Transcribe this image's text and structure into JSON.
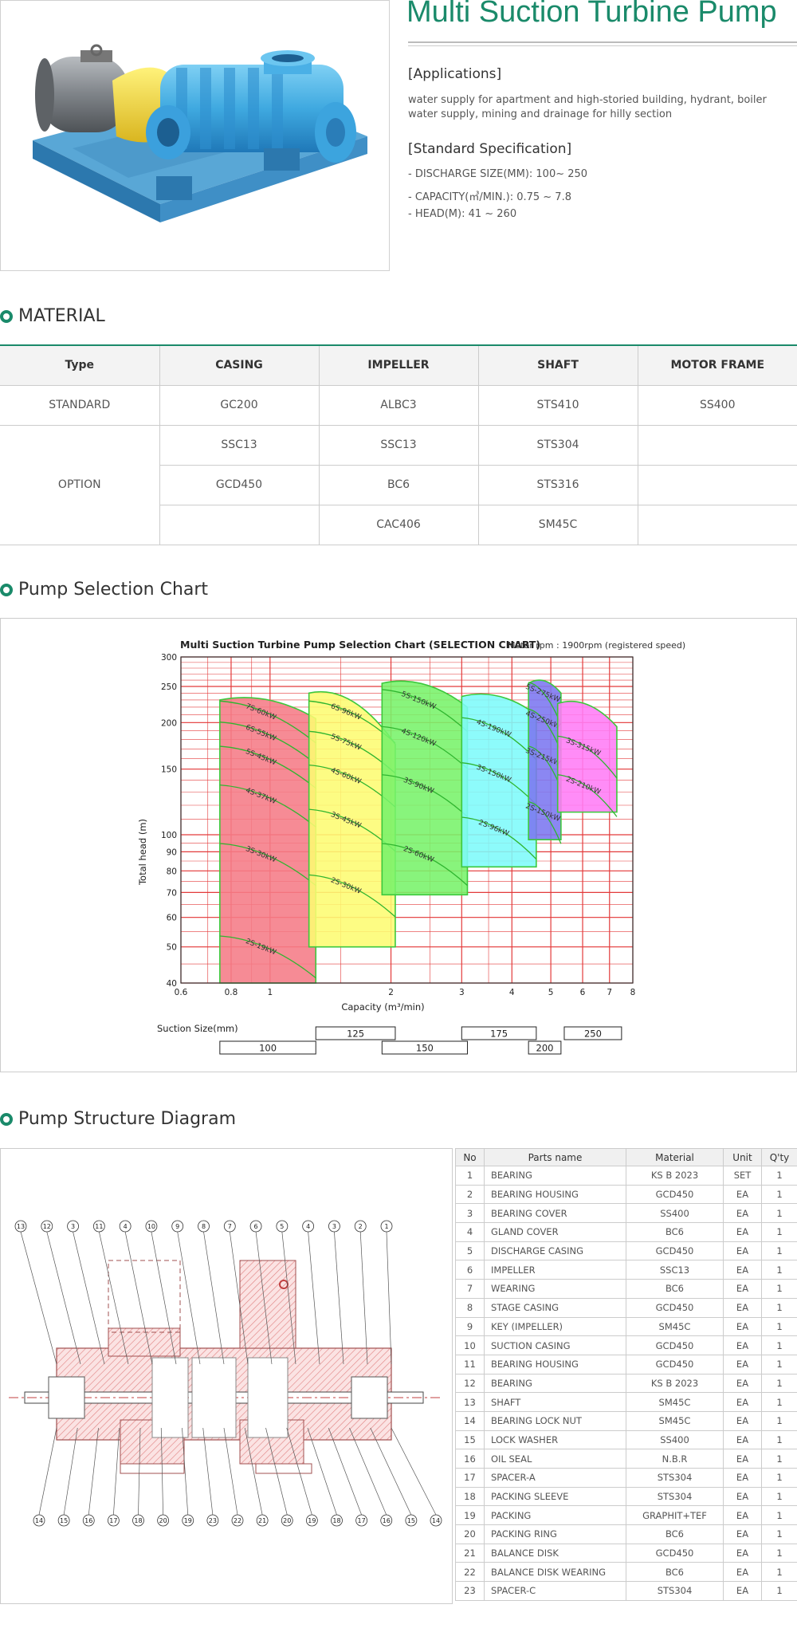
{
  "header": {
    "title": "Multi Suction Turbine Pump",
    "applications_heading": "[Applications]",
    "applications_text": "water supply for apartment and high-storied building, hydrant, boiler water supply, mining and drainage for hilly section",
    "spec_heading": "[Standard Specification]",
    "specs": [
      "- DISCHARGE SIZE(MM): 100~ 250",
      "- CAPACITY(㎥/MIN.): 0.75 ~ 7.8",
      "- HEAD(M): 41 ~ 260"
    ]
  },
  "material": {
    "heading": "MATERIAL",
    "columns": [
      "Type",
      "CASING",
      "IMPELLER",
      "SHAFT",
      "MOTOR FRAME"
    ],
    "standard": {
      "type": "STANDARD",
      "values": [
        "GC200",
        "ALBC3",
        "STS410",
        "SS400"
      ]
    },
    "option": {
      "type": "OPTION",
      "rows": [
        [
          "SSC13",
          "SSC13",
          "STS304",
          ""
        ],
        [
          "GCD450",
          "BC6",
          "STS316",
          ""
        ],
        [
          "",
          "CAC406",
          "SM45C",
          ""
        ]
      ]
    }
  },
  "selection": {
    "heading": "Pump Selection Chart"
  },
  "chart_data": {
    "type": "area",
    "title": "Multi Suction Turbine Pump Selection Chart (SELECTION CHART)",
    "subtitle": "Motor rpm : 1900rpm (registered speed)",
    "xlabel": "Capacity (m³/min)",
    "ylabel": "Total head (m)",
    "x_scale": "log",
    "y_scale": "log",
    "xlim": [
      0.6,
      8
    ],
    "ylim": [
      40,
      300
    ],
    "x_ticks": [
      0.6,
      0.8,
      1,
      2,
      3,
      4,
      5,
      6,
      7,
      8
    ],
    "x_tick_labels": [
      "0.6",
      "0.8",
      "1",
      "2",
      "3",
      "4",
      "5",
      "6",
      "7",
      "8"
    ],
    "y_ticks": [
      40,
      50,
      60,
      70,
      80,
      90,
      100,
      150,
      200,
      250,
      300
    ],
    "y_tick_labels": [
      "40",
      "50",
      "60",
      "70",
      "80",
      "90",
      "100",
      "150",
      "200",
      "250",
      "300"
    ],
    "grid": true,
    "regions": [
      {
        "color": "#f57b86",
        "x": [
          0.75,
          1.3
        ],
        "top": [
          230,
          205
        ],
        "bottom": 40,
        "labels": [
          "7S-60kW",
          "6S-55kW",
          "5S-45kW",
          "4S-37kW",
          "3S-30kW",
          "2S-19kW"
        ],
        "heads": [
          205,
          180,
          155,
          122,
          85,
          48
        ]
      },
      {
        "color": "#fdfc72",
        "x": [
          1.25,
          2.05
        ],
        "top": [
          240,
          175
        ],
        "bottom": 50,
        "labels": [
          "6S-96kW",
          "5S-75kW",
          "4S-60kW",
          "3S-45kW",
          "2S-30kW"
        ],
        "heads": [
          205,
          170,
          138,
          105,
          70
        ]
      },
      {
        "color": "#78f26a",
        "x": [
          1.9,
          3.1
        ],
        "top": [
          255,
          220
        ],
        "bottom": 69,
        "labels": [
          "5S-150kW",
          "4S-120kW",
          "3S-90kW",
          "2S-60kW"
        ],
        "heads": [
          220,
          175,
          130,
          85
        ]
      },
      {
        "color": "#7dfbfb",
        "x": [
          3.0,
          4.6
        ],
        "top": [
          235,
          210
        ],
        "bottom": 82,
        "labels": [
          "4S-190kW",
          "3S-150kW",
          "2S-96kW"
        ],
        "heads": [
          185,
          140,
          100
        ]
      },
      {
        "color": "#7b76f0",
        "x": [
          4.4,
          5.3
        ],
        "top": [
          255,
          240
        ],
        "bottom": 97,
        "labels": [
          "5S-275kW",
          "4S-250kW",
          "3S-215kW",
          "2S-150kW"
        ],
        "heads": [
          230,
          195,
          155,
          110
        ]
      },
      {
        "color": "#ff7cf6",
        "x": [
          5.2,
          7.3
        ],
        "top": [
          225,
          195
        ],
        "bottom": 115,
        "labels": [
          "3S-315kW",
          "2S-210kW"
        ],
        "heads": [
          165,
          130
        ]
      }
    ],
    "suction_label": "Suction Size(mm)",
    "suction_sizes": [
      {
        "size": "100",
        "x": [
          0.75,
          1.3
        ],
        "row": 2
      },
      {
        "size": "125",
        "x": [
          1.3,
          2.05
        ],
        "row": 1
      },
      {
        "size": "150",
        "x": [
          1.9,
          3.1
        ],
        "row": 2
      },
      {
        "size": "175",
        "x": [
          3.0,
          4.6
        ],
        "row": 1
      },
      {
        "size": "200",
        "x": [
          4.4,
          5.3
        ],
        "row": 2
      },
      {
        "size": "250",
        "x": [
          5.4,
          7.5
        ],
        "row": 1
      }
    ]
  },
  "structure": {
    "heading": "Pump Structure Diagram",
    "top_callouts": [
      "13",
      "12",
      "3",
      "11",
      "4",
      "10",
      "9",
      "8",
      "7",
      "6",
      "5",
      "4",
      "3",
      "2",
      "1"
    ],
    "bottom_callouts": [
      "14",
      "15",
      "16",
      "17",
      "18",
      "20",
      "19",
      "23",
      "22",
      "21",
      "20",
      "19",
      "18",
      "17",
      "16",
      "15",
      "14"
    ]
  },
  "parts": {
    "columns": [
      "No",
      "Parts name",
      "Material",
      "Unit",
      "Q'ty"
    ],
    "rows": [
      [
        "1",
        "BEARING",
        "KS B 2023",
        "SET",
        "1"
      ],
      [
        "2",
        "BEARING HOUSING",
        "GCD450",
        "EA",
        "1"
      ],
      [
        "3",
        "BEARING COVER",
        "SS400",
        "EA",
        "1"
      ],
      [
        "4",
        "GLAND COVER",
        "BC6",
        "EA",
        "1"
      ],
      [
        "5",
        "DISCHARGE CASING",
        "GCD450",
        "EA",
        "1"
      ],
      [
        "6",
        "IMPELLER",
        "SSC13",
        "EA",
        "1"
      ],
      [
        "7",
        "WEARING",
        "BC6",
        "EA",
        "1"
      ],
      [
        "8",
        "STAGE CASING",
        "GCD450",
        "EA",
        "1"
      ],
      [
        "9",
        "KEY (IMPELLER)",
        "SM45C",
        "EA",
        "1"
      ],
      [
        "10",
        "SUCTION CASING",
        "GCD450",
        "EA",
        "1"
      ],
      [
        "11",
        "BEARING HOUSING",
        "GCD450",
        "EA",
        "1"
      ],
      [
        "12",
        "BEARING",
        "KS B 2023",
        "EA",
        "1"
      ],
      [
        "13",
        "SHAFT",
        "SM45C",
        "EA",
        "1"
      ],
      [
        "14",
        "BEARING LOCK NUT",
        "SM45C",
        "EA",
        "1"
      ],
      [
        "15",
        "LOCK WASHER",
        "SS400",
        "EA",
        "1"
      ],
      [
        "16",
        "OIL SEAL",
        "N.B.R",
        "EA",
        "1"
      ],
      [
        "17",
        "SPACER-A",
        "STS304",
        "EA",
        "1"
      ],
      [
        "18",
        "PACKING SLEEVE",
        "STS304",
        "EA",
        "1"
      ],
      [
        "19",
        "PACKING",
        "GRAPHIT+TEF",
        "EA",
        "1"
      ],
      [
        "20",
        "PACKING RING",
        "BC6",
        "EA",
        "1"
      ],
      [
        "21",
        "BALANCE DISK",
        "GCD450",
        "EA",
        "1"
      ],
      [
        "22",
        "BALANCE DISK WEARING",
        "BC6",
        "EA",
        "1"
      ],
      [
        "23",
        "SPACER-C",
        "STS304",
        "EA",
        "1"
      ]
    ]
  }
}
